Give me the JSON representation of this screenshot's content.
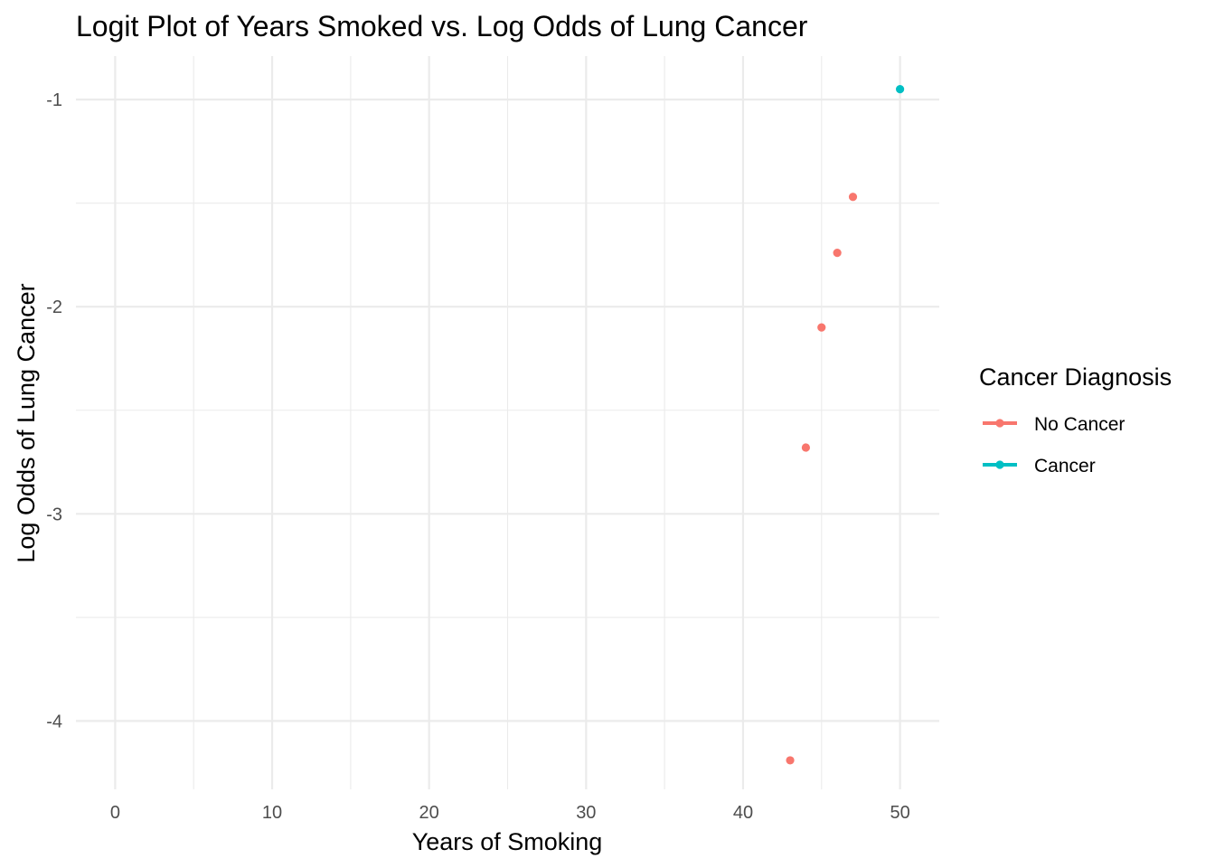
{
  "chart_data": {
    "type": "scatter",
    "title": "Logit Plot of Years Smoked vs. Log Odds of Lung Cancer",
    "xlabel": "Years of Smoking",
    "ylabel": "Log Odds of Lung Cancer",
    "xlim": [
      -2.5,
      52.5
    ],
    "ylim": [
      -4.33,
      -0.79
    ],
    "x_ticks": [
      0,
      10,
      20,
      30,
      40,
      50
    ],
    "x_tick_labels": [
      "0",
      "10",
      "20",
      "30",
      "40",
      "50"
    ],
    "y_ticks": [
      -1,
      -2,
      -3,
      -4
    ],
    "y_tick_labels": [
      "-1",
      "-2",
      "-3",
      "-4"
    ],
    "grid": true,
    "legend": {
      "title": "Cancer Diagnosis",
      "placement": "right",
      "entries": [
        "No Cancer",
        "Cancer"
      ]
    },
    "series": [
      {
        "name": "No Cancer",
        "color": "#f8766d",
        "x": [
          43,
          44,
          45,
          46,
          47
        ],
        "y": [
          -4.19,
          -2.68,
          -2.1,
          -1.74,
          -1.47
        ]
      },
      {
        "name": "Cancer",
        "color": "#00bfc4",
        "x": [
          50
        ],
        "y": [
          -0.95
        ]
      }
    ]
  }
}
